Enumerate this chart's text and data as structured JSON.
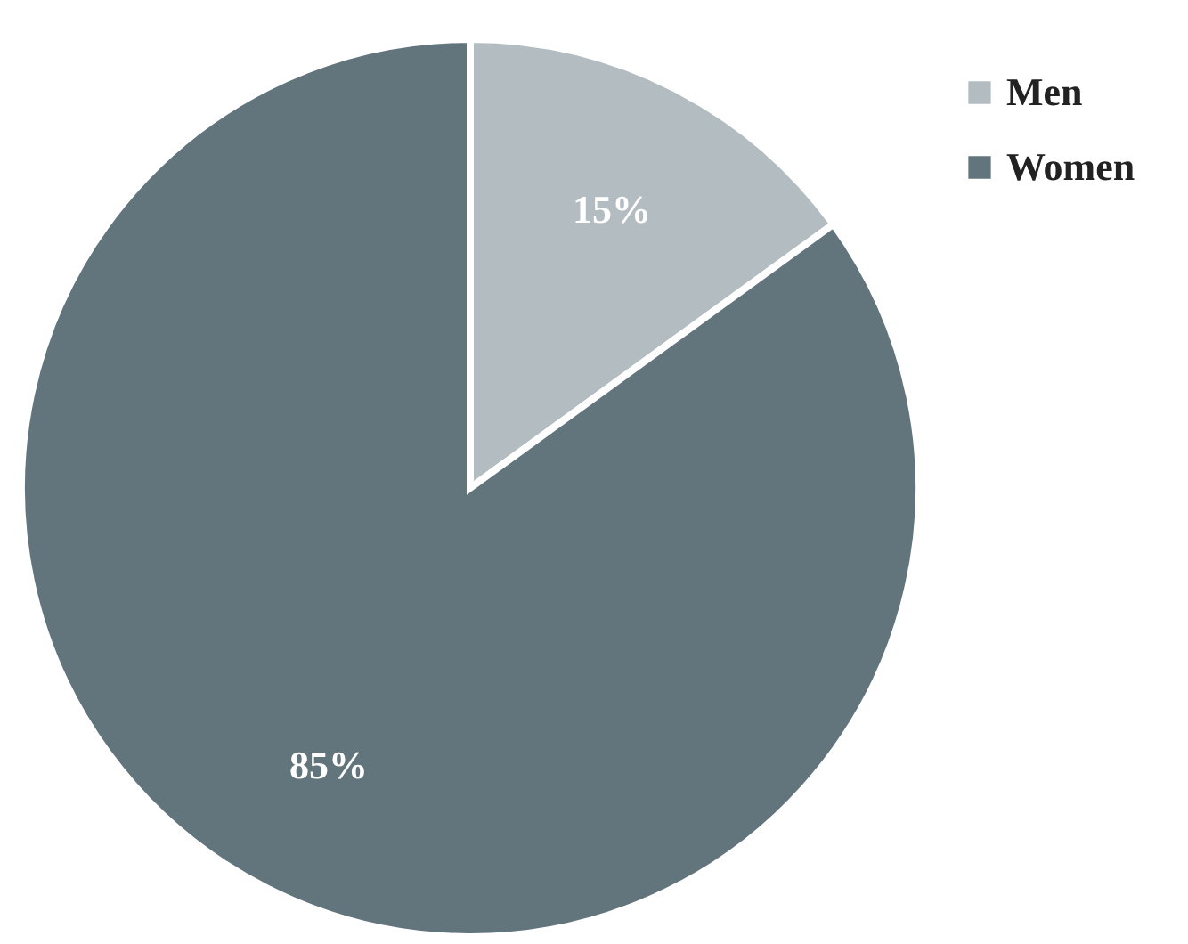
{
  "chart_data": {
    "type": "pie",
    "categories": [
      "Men",
      "Women"
    ],
    "values": [
      15,
      85
    ],
    "colors": [
      "#b2bcc1",
      "#62757d"
    ],
    "value_labels": [
      "15%",
      "85%"
    ],
    "legend": "top right"
  }
}
